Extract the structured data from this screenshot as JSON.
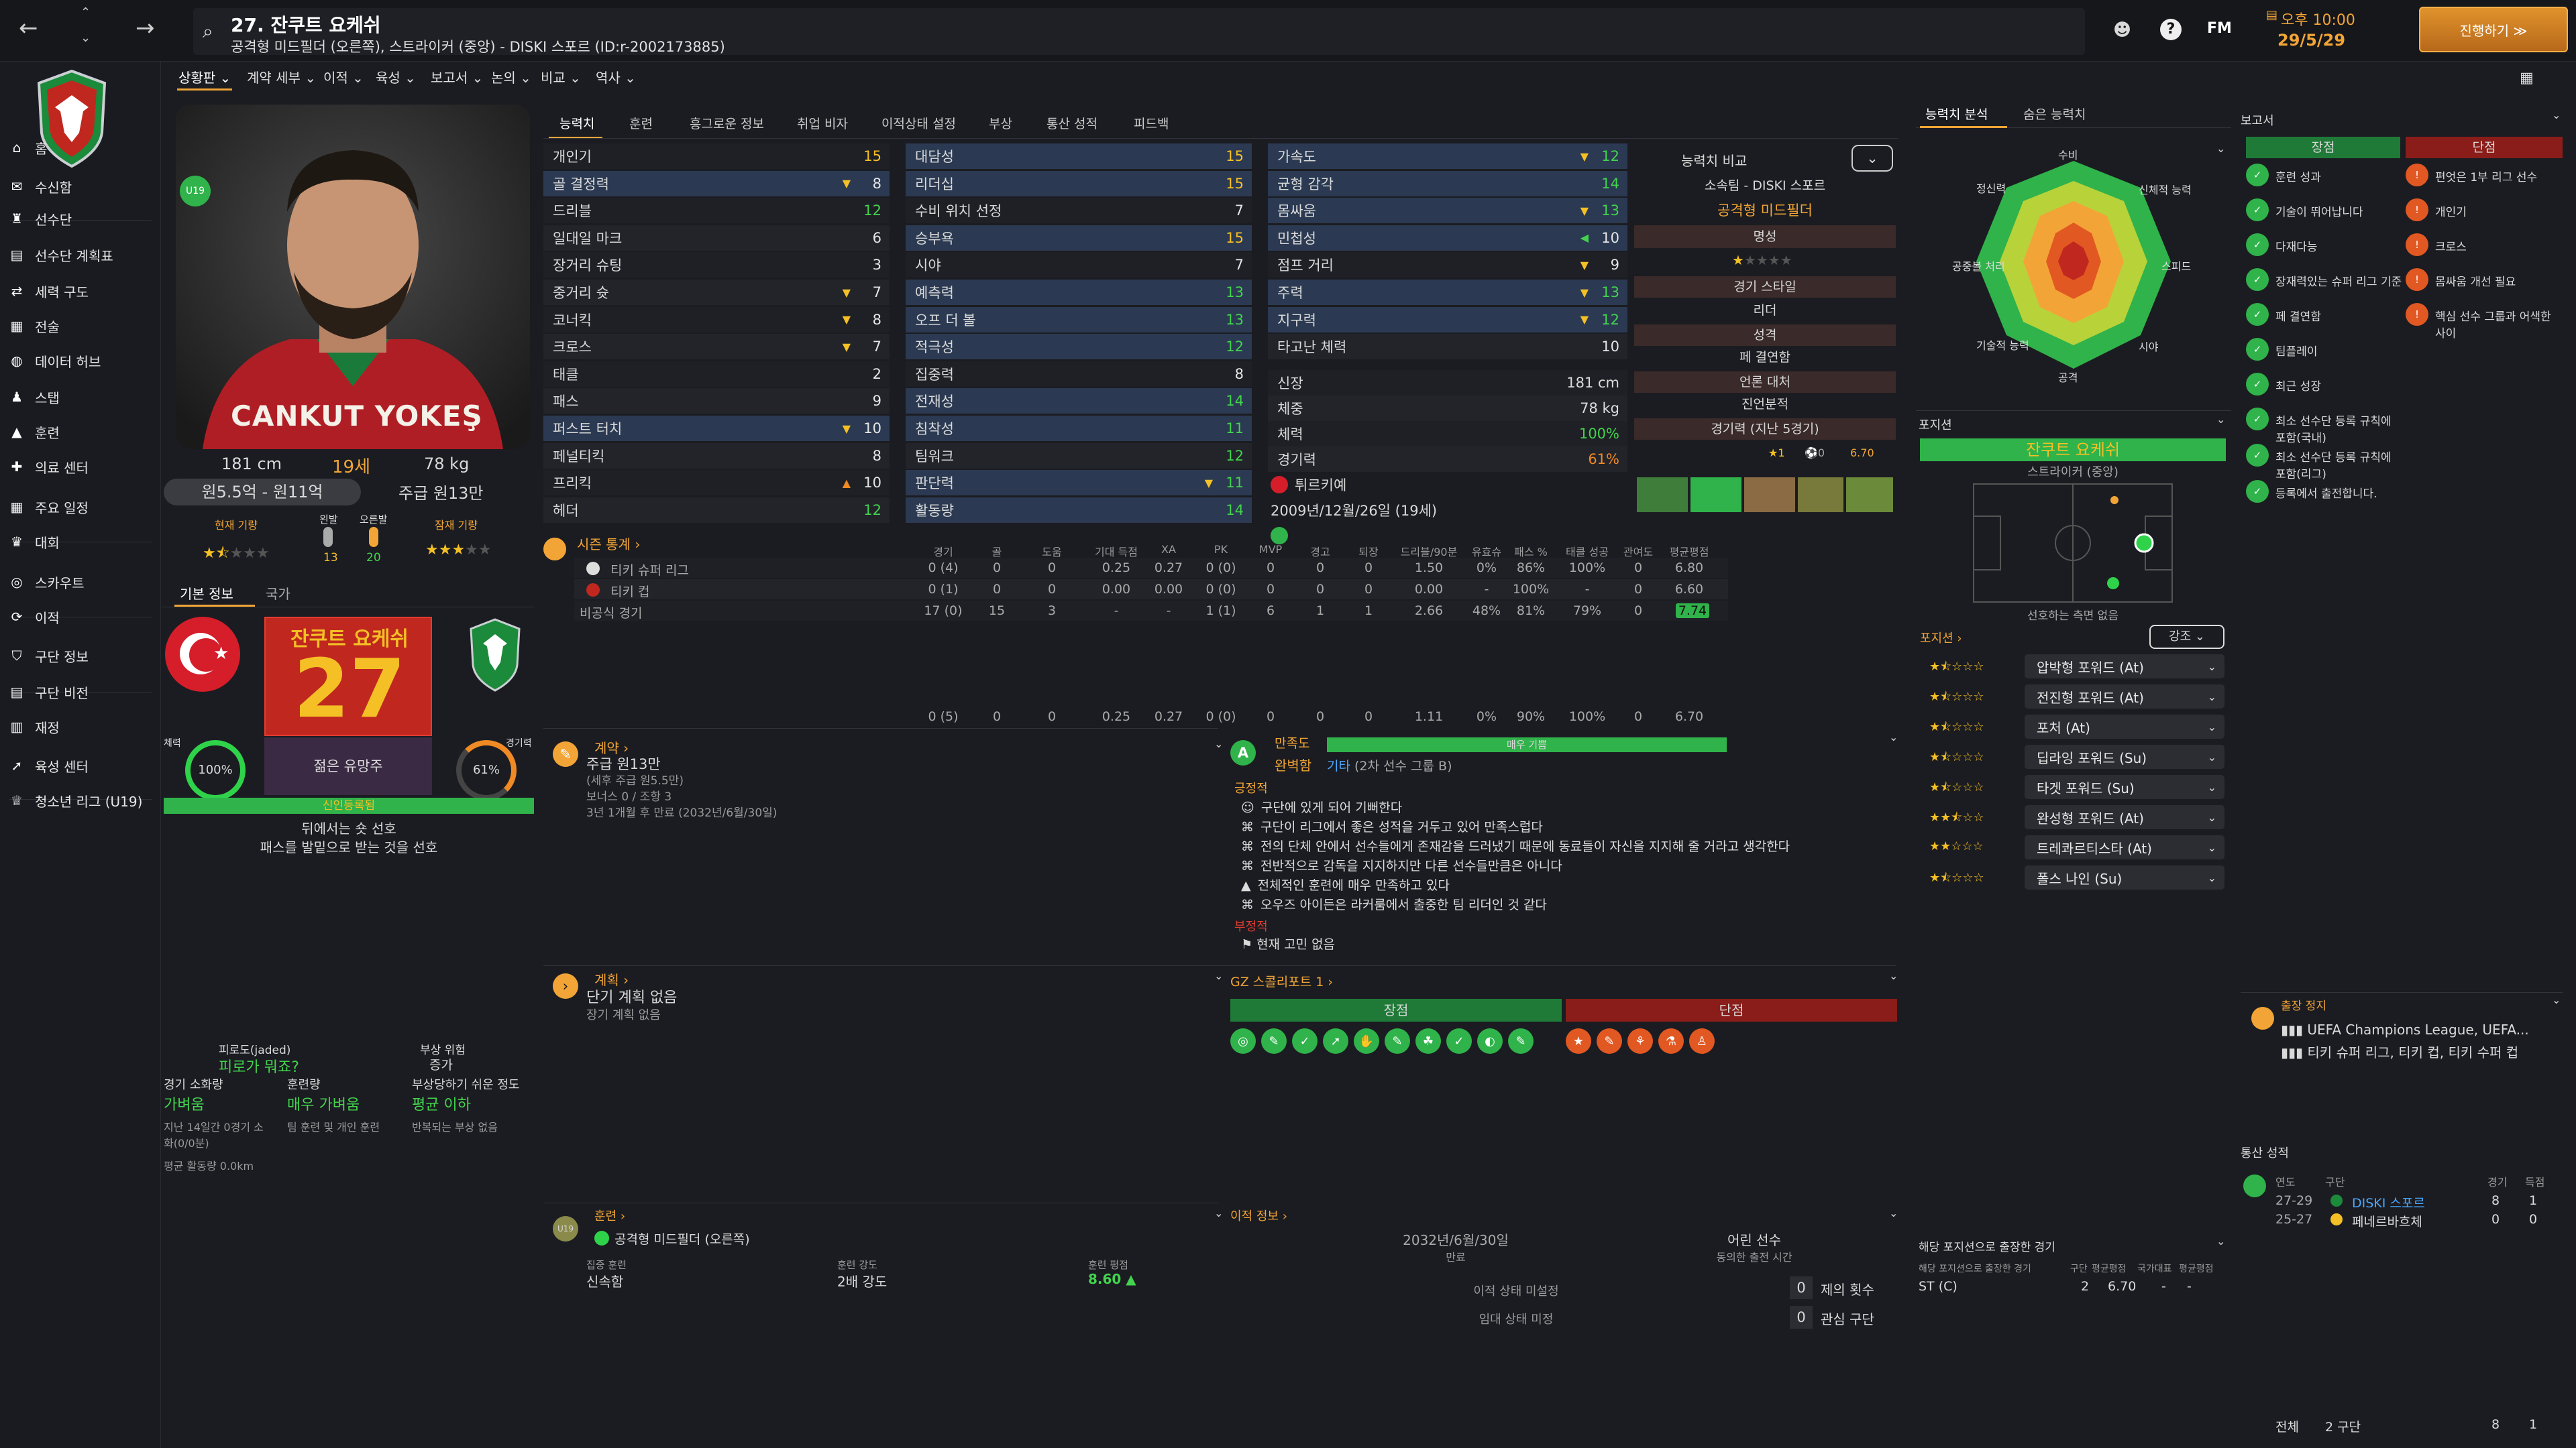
{
  "header": {
    "player_title": "27. 잔쿠트 요케쉬",
    "player_subtitle": "공격형 미드필더 (오른쪽), 스트라이커 (중앙) - DISKI 스포르 (ID:r-2002173885)",
    "time": "오후 10:00",
    "date": "29/5/29",
    "continue_label": "진행하기 ≫",
    "fm_label": "FM"
  },
  "subtabs": [
    "상황판",
    "계약 세부",
    "이적",
    "육성",
    "보고서",
    "논의",
    "비교",
    "역사"
  ],
  "sidebar": {
    "items": [
      {
        "label": "홈",
        "icon": "home-icon"
      },
      {
        "label": "수신함",
        "icon": "inbox-icon"
      },
      {
        "label": "선수단",
        "icon": "squad-icon"
      },
      {
        "label": "선수단 계획표",
        "icon": "planner-icon"
      },
      {
        "label": "세력 구도",
        "icon": "dynamics-icon"
      },
      {
        "label": "전술",
        "icon": "tactics-icon"
      },
      {
        "label": "데이터 허브",
        "icon": "data-hub-icon"
      },
      {
        "label": "스탭",
        "icon": "staff-icon"
      },
      {
        "label": "훈련",
        "icon": "training-icon"
      },
      {
        "label": "의료 센터",
        "icon": "medical-icon"
      },
      {
        "label": "주요 일정",
        "icon": "calendar-icon"
      },
      {
        "label": "대회",
        "icon": "trophy-icon"
      },
      {
        "label": "스카우트",
        "icon": "scouting-icon"
      },
      {
        "label": "이적",
        "icon": "transfer-icon"
      },
      {
        "label": "구단 정보",
        "icon": "club-info-icon"
      },
      {
        "label": "구단 비전",
        "icon": "club-vision-icon"
      },
      {
        "label": "재정",
        "icon": "finance-icon"
      },
      {
        "label": "육성 센터",
        "icon": "dev-centre-icon"
      },
      {
        "label": "청소년 리그 (U19)",
        "icon": "youth-league-icon"
      }
    ]
  },
  "profile": {
    "shirt_name": "CANKUT YOKEŞ",
    "height": "181 cm",
    "age": "19세",
    "weight": "78 kg",
    "value": "원5.5억 - 원11억",
    "wage": "주급 원13만",
    "u19": "U19",
    "current_ability_label": "현재 기량",
    "potential_label": "잠재 기량",
    "left_foot_label": "왼발",
    "right_foot_label": "오른발",
    "left_foot_val": "13",
    "right_foot_val": "20",
    "tabs": [
      "기본 정보",
      "국가"
    ],
    "card_name": "잔쿠트 요케쉬",
    "card_number": "27",
    "card_role": "젊은 유망주",
    "condition_label": "체력",
    "condition_val": "100%",
    "match_sharp_label": "경기력",
    "match_sharp_val": "61%",
    "status_bar": "신인등록됨",
    "traits": [
      "뒤에서는 숏 선호",
      "패스를 발밑으로 받는 것을 선호"
    ],
    "fatigue_label": "피로도(jaded)",
    "fatigue_val": "피로가 뭐죠?",
    "injury_label": "부상 위험",
    "injury_val": "증가",
    "match_load_label": "경기 소화량",
    "match_load_val": "가벼움",
    "training_load_label": "훈련량",
    "training_load_val": "매우 가벼움",
    "injury_prone_label": "부상당하기 쉬운 정도",
    "injury_prone_val": "평균 이하",
    "note1": "지난 14일간 0경기 소화(0/0분)",
    "note2": "팀 훈련 및 개인 훈련",
    "note3": "반복되는 부상 없음",
    "distance": "평균 활동량 0.0km"
  },
  "attr_tabs": [
    "능력치",
    "훈련",
    "흥그로운 정보",
    "취업 비자",
    "이적상태 설정",
    "부상",
    "통산 성적",
    "피드백"
  ],
  "technical": [
    {
      "name": "개인기",
      "val": "15",
      "arrow": ""
    },
    {
      "name": "골 결정력",
      "val": "8",
      "arrow": "▼"
    },
    {
      "name": "드리블",
      "val": "12",
      "arrow": ""
    },
    {
      "name": "일대일 마크",
      "val": "6",
      "arrow": ""
    },
    {
      "name": "장거리 슈팅",
      "val": "3",
      "arrow": ""
    },
    {
      "name": "중거리 슛",
      "val": "7",
      "arrow": "▼"
    },
    {
      "name": "코너킥",
      "val": "8",
      "arrow": "▼"
    },
    {
      "name": "크로스",
      "val": "7",
      "arrow": "▼"
    },
    {
      "name": "태클",
      "val": "2",
      "arrow": ""
    },
    {
      "name": "패스",
      "val": "9",
      "arrow": ""
    },
    {
      "name": "퍼스트 터치",
      "val": "10",
      "arrow": "▼"
    },
    {
      "name": "페널티킥",
      "val": "8",
      "arrow": ""
    },
    {
      "name": "프리킥",
      "val": "10",
      "arrow": "▲"
    },
    {
      "name": "헤더",
      "val": "12",
      "arrow": ""
    }
  ],
  "mental": [
    {
      "name": "대담성",
      "val": "15",
      "arrow": ""
    },
    {
      "name": "리더십",
      "val": "15",
      "arrow": ""
    },
    {
      "name": "수비 위치 선정",
      "val": "7",
      "arrow": ""
    },
    {
      "name": "승부욕",
      "val": "15",
      "arrow": ""
    },
    {
      "name": "시야",
      "val": "7",
      "arrow": ""
    },
    {
      "name": "예측력",
      "val": "13",
      "arrow": ""
    },
    {
      "name": "오프 더 볼",
      "val": "13",
      "arrow": ""
    },
    {
      "name": "적극성",
      "val": "12",
      "arrow": ""
    },
    {
      "name": "집중력",
      "val": "8",
      "arrow": ""
    },
    {
      "name": "전재성",
      "val": "14",
      "arrow": ""
    },
    {
      "name": "침착성",
      "val": "11",
      "arrow": ""
    },
    {
      "name": "팀워크",
      "val": "12",
      "arrow": ""
    },
    {
      "name": "판단력",
      "val": "11",
      "arrow": "▼"
    },
    {
      "name": "활동량",
      "val": "14",
      "arrow": ""
    }
  ],
  "physical": [
    {
      "name": "가속도",
      "val": "12",
      "arrow": "▼"
    },
    {
      "name": "균형 감각",
      "val": "14",
      "arrow": ""
    },
    {
      "name": "몸싸움",
      "val": "13",
      "arrow": "▼"
    },
    {
      "name": "민첩성",
      "val": "10",
      "arrow": "◀"
    },
    {
      "name": "점프 거리",
      "val": "9",
      "arrow": "▼"
    },
    {
      "name": "주력",
      "val": "13",
      "arrow": "▼"
    },
    {
      "name": "지구력",
      "val": "12",
      "arrow": "▼"
    },
    {
      "name": "타고난 체력",
      "val": "10",
      "arrow": ""
    }
  ],
  "physinfo": [
    {
      "name": "신장",
      "val": "181 cm"
    },
    {
      "name": "체중",
      "val": "78 kg"
    },
    {
      "name": "체력",
      "val": "100%"
    },
    {
      "name": "경기력",
      "val": "61%"
    },
    {
      "name": "튀르키예",
      "val": ""
    },
    {
      "name": "2009년/12월/26일 (19세)",
      "val": ""
    }
  ],
  "compare": {
    "label": "능력치 비교",
    "club": "소속팀 - DISKI 스포르",
    "position": "공격형 미드필더",
    "reputation_label": "명성",
    "style_label": "경기 스타일",
    "style_val": "리더",
    "personality_label": "성격",
    "personality_val": "페 결연함",
    "media_label": "언론 대처",
    "media_val": "진언분적",
    "form_label": "경기력 (지난 5경기)",
    "form_vals": [
      "1",
      "0",
      "6.70"
    ]
  },
  "stats": {
    "title": "시즌 통계",
    "headers": [
      "경기",
      "골",
      "도움",
      "기대 득점",
      "XA",
      "PK",
      "MVP",
      "경고",
      "퇴장",
      "드리블/90분",
      "유효슈",
      "패스 %",
      "태클 성공",
      "관여도",
      "평균평점"
    ],
    "rows": [
      {
        "name": "티키 슈퍼 리그",
        "vals": [
          "0 (4)",
          "0",
          "0",
          "0.25",
          "0.27",
          "0 (0)",
          "0",
          "0",
          "0",
          "1.50",
          "0%",
          "86%",
          "100%",
          "0",
          "6.80"
        ]
      },
      {
        "name": "티키 컵",
        "vals": [
          "0 (1)",
          "0",
          "0",
          "0.00",
          "0.00",
          "0 (0)",
          "0",
          "0",
          "0",
          "0.00",
          "-",
          "100%",
          "-",
          "0",
          "6.60"
        ]
      },
      {
        "name": "비공식 경기",
        "vals": [
          "17 (0)",
          "15",
          "3",
          "-",
          "-",
          "1 (1)",
          "6",
          "1",
          "1",
          "2.66",
          "48%",
          "81%",
          "79%",
          "0",
          "7.74"
        ]
      }
    ],
    "total": [
      "0 (5)",
      "0",
      "0",
      "0.25",
      "0.27",
      "0 (0)",
      "0",
      "0",
      "0",
      "1.11",
      "0%",
      "90%",
      "100%",
      "0",
      "6.70"
    ]
  },
  "contract": {
    "title": "계약",
    "wage": "주급 원13만",
    "wage_sub": "(세후 주급 원5.5만)",
    "bonus": "보너스 0 / 조항 3",
    "expiry": "3년 1개월 후 만료 (2032년/6월/30일)"
  },
  "satisfaction": {
    "title": "만족도",
    "level": "매우 기쁨",
    "status": "완벽함",
    "group": "기타",
    "group_sub": "(2차 선수 그룹 B)",
    "positive_label": "긍정적",
    "positives": [
      "구단에 있게 되어 기뻐한다",
      "구단이 리그에서 좋은 성적을 거두고 있어 만족스럽다",
      "전의 단체 안에서 선수들에게 존재감을 드러냈기 때문에 동료들이 자신을 지지해 줄 거라고 생각한다",
      "전반적으로 감독을 지지하지만 다른 선수들만큼은 아니다",
      "전체적인 훈련에 매우 만족하고 있다",
      "오우즈 아이든은 라커룸에서 출중한 팀 리더인 것 같다"
    ],
    "negative_label": "부정적",
    "negatives": [
      "현재 고민 없음"
    ]
  },
  "plans": {
    "title": "계획",
    "line1": "단기 계획 없음",
    "line2": "장기 계획 없음"
  },
  "gz": {
    "title": "GZ 스콜리포트 1",
    "strengths": "장점",
    "weaknesses": "단점"
  },
  "training": {
    "title": "훈련",
    "role": "공격형 미드필더 (오른쪽)",
    "focus_label": "집중 훈련",
    "focus_val": "신속함",
    "intensity_label": "훈련 강도",
    "intensity_val": "2배 강도",
    "rating_label": "훈련 평점",
    "rating_val": "8.60 ▲"
  },
  "transfer": {
    "title": "이적 정보",
    "contract_end": "2032년/6월/30일",
    "contract_end_label": "만료",
    "young_label": "어린 선수",
    "young_sub": "동의한 출전 시간",
    "status1": "이적 상태 미설정",
    "status2": "임대 상태 미정",
    "offers_count": "0",
    "offers_label": "제의 횟수",
    "interest_count": "0",
    "interest_label": "관심 구단"
  },
  "analysis": {
    "tabs": [
      "능력치 분석",
      "숨은 능력치"
    ],
    "labels": [
      "수비",
      "신체적 능력",
      "스피드",
      "시야",
      "공격",
      "기술적 능력",
      "공중볼 처리",
      "정신력"
    ]
  },
  "position": {
    "title": "포지션",
    "name": "잔쿠트 요케쉬",
    "sub": "스트라이커 (중앙)",
    "note": "선호하는 측면 없음",
    "list_title": "포지션",
    "filter": "강조",
    "roles": [
      {
        "stars": 1.5,
        "role": "압박형 포워드 (At)"
      },
      {
        "stars": 1.5,
        "role": "전진형 포워드 (At)"
      },
      {
        "stars": 1.5,
        "role": "포처 (At)"
      },
      {
        "stars": 1.5,
        "role": "딥라잉 포워드 (Su)"
      },
      {
        "stars": 1.5,
        "role": "타겟 포워드 (Su)"
      },
      {
        "stars": 2.5,
        "role": "완성형 포워드 (At)"
      },
      {
        "stars": 2,
        "role": "트레콰르티스타 (At)"
      },
      {
        "stars": 1.5,
        "role": "폴스 나인 (Su)"
      }
    ]
  },
  "report": {
    "title": "보고서",
    "strengths_label": "장점",
    "weaknesses_label": "단점",
    "strengths": [
      "훈련 성과",
      "기술이 뛰어납니다",
      "다재다능",
      "장재력있는 슈퍼 리그 기준",
      "페 결연함",
      "팀플레이",
      "최근 성장",
      "최소 선수단 등록 규칙에 포함(국내)",
      "최소 선수단 등록 규칙에 포함(리그)",
      "등록에서 출전합니다."
    ],
    "weaknesses": [
      "편엇은 1부 리그 선수",
      "개인기",
      "크로스",
      "몸싸움 개선 필요",
      "핵심 선수 그룹과 어색한 사이"
    ]
  },
  "ban": {
    "title": "출장 정지",
    "line1": "UEFA Champions League, UEFA...",
    "line2": "티키 슈퍼 리그, 티키 컵, 티키 수퍼 컵"
  },
  "career": {
    "title": "통산 성적",
    "headers": [
      "연도",
      "구단",
      "경기",
      "득점"
    ],
    "rows": [
      {
        "year": "27-29",
        "club": "DISKI 스포르",
        "apps": "8",
        "goals": "1"
      },
      {
        "year": "25-27",
        "club": "페네르바흐체",
        "apps": "0",
        "goals": "0"
      }
    ],
    "total_label": "전체",
    "total_clubs": "2 구단",
    "total_apps": "8",
    "total_goals": "1"
  },
  "pos_apps": {
    "title": "해당 포지션으로 출장한 경기",
    "headers": [
      "해당 포지션으로 출장한 경기",
      "구단",
      "평균평점",
      "국가대표",
      "평균평점"
    ],
    "row": [
      "ST (C)",
      "2",
      "6.70",
      "-",
      "-"
    ]
  },
  "colors": {
    "accent": "#f2a536",
    "green": "#2fb34a",
    "red": "#c0281f",
    "bg": "#1b1c21"
  }
}
